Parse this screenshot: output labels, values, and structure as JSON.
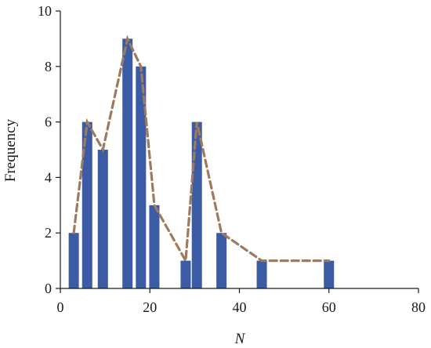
{
  "chart_data": {
    "type": "bar",
    "title": "",
    "xlabel": "N",
    "ylabel": "Frequency",
    "xlim": [
      0,
      80
    ],
    "ylim": [
      0,
      10
    ],
    "x_ticks": [
      "0",
      "20",
      "40",
      "60",
      "80"
    ],
    "y_ticks": [
      "0",
      "2",
      "4",
      "6",
      "8",
      "10"
    ],
    "grid": false,
    "legend": "none",
    "bar_color": "#3b5ba5",
    "line_color": "#9e7a5e",
    "bars": [
      {
        "x": 3,
        "value": 2
      },
      {
        "x": 6,
        "value": 6
      },
      {
        "x": 9.5,
        "value": 5
      },
      {
        "x": 15,
        "value": 9
      },
      {
        "x": 18,
        "value": 8
      },
      {
        "x": 21,
        "value": 3
      },
      {
        "x": 28,
        "value": 1
      },
      {
        "x": 30.5,
        "value": 6
      },
      {
        "x": 36,
        "value": 2
      },
      {
        "x": 45,
        "value": 1
      },
      {
        "x": 60,
        "value": 1
      }
    ],
    "polygon": {
      "x": [
        3,
        6,
        9.5,
        15,
        18,
        21,
        28,
        30.5,
        36,
        45,
        60
      ],
      "y": [
        2,
        6,
        5,
        9,
        8,
        3,
        1,
        6,
        2,
        1,
        1
      ]
    }
  }
}
